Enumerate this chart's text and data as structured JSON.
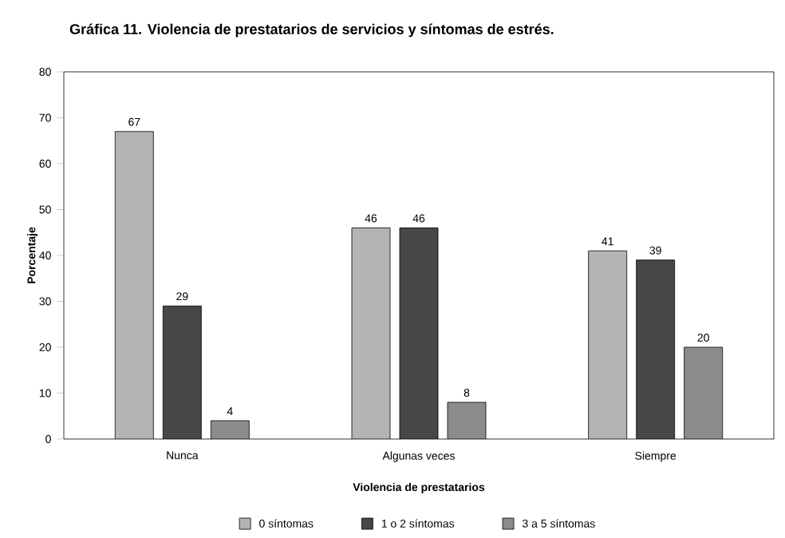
{
  "chart_data": {
    "type": "bar",
    "title": "Gráfica 11. Violencia de prestatarios de servicios y síntomas de estrés.",
    "xlabel": "Violencia de prestatarios",
    "ylabel": "Porcentaje",
    "categories": [
      "Nunca",
      "Algunas veces",
      "Siempre"
    ],
    "series": [
      {
        "name": "0 síntomas",
        "color": "#b4b4b4",
        "values": [
          67,
          46,
          41
        ]
      },
      {
        "name": "1 o 2 síntomas",
        "color": "#474747",
        "values": [
          29,
          46,
          39
        ]
      },
      {
        "name": "3 a 5 síntomas",
        "color": "#8c8c8c",
        "values": [
          4,
          8,
          20
        ]
      }
    ],
    "ylim": [
      0,
      80
    ],
    "yticks": [
      0,
      10,
      20,
      30,
      40,
      50,
      60,
      70,
      80
    ],
    "grid": false,
    "legend": "bottom",
    "data_labels": true
  }
}
